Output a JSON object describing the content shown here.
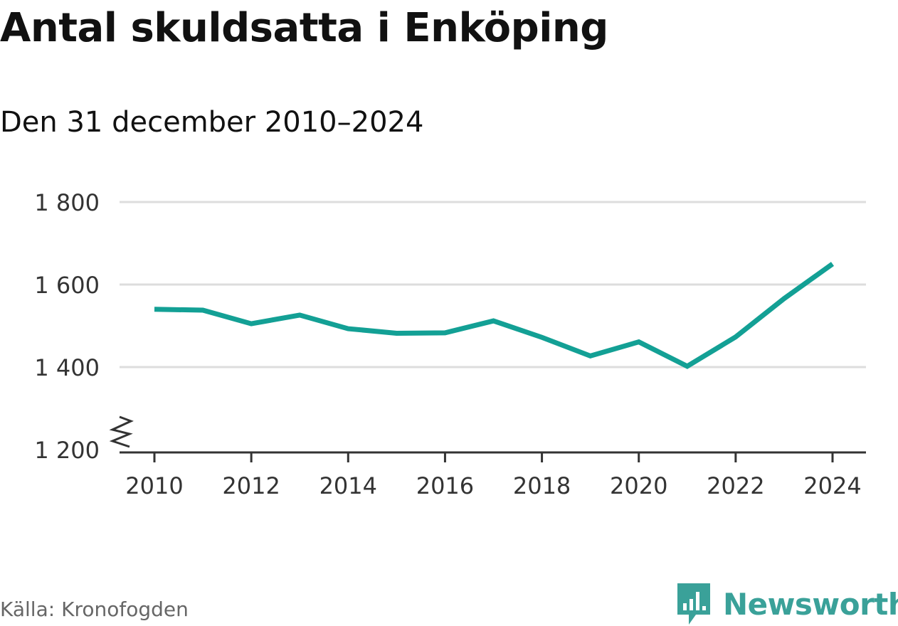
{
  "header": {
    "title": "Antal skuldsatta i Enköping",
    "subtitle": "Den 31 december 2010–2024"
  },
  "footer": {
    "source": "Källa: Kronofogden",
    "brand": "Newsworthy",
    "brand_icon": "newsworthy-chart-bubble-icon"
  },
  "colors": {
    "line": "#13a095",
    "grid": "#dddddd",
    "axis": "#333333",
    "brand": "#3aa199"
  },
  "chart_data": {
    "type": "line",
    "title": "Antal skuldsatta i Enköping",
    "subtitle": "Den 31 december 2010–2024",
    "xlabel": "",
    "ylabel": "",
    "x": [
      2010,
      2011,
      2012,
      2013,
      2014,
      2015,
      2016,
      2017,
      2018,
      2019,
      2020,
      2021,
      2022,
      2023,
      2024
    ],
    "series": [
      {
        "name": "Antal skuldsatta",
        "values": [
          1540,
          1538,
          1505,
          1526,
          1493,
          1482,
          1483,
          1512,
          1472,
          1427,
          1461,
          1402,
          1473,
          1566,
          1650
        ]
      }
    ],
    "xticks": [
      "2010",
      "2012",
      "2014",
      "2016",
      "2018",
      "2020",
      "2022",
      "2024"
    ],
    "xtick_values": [
      2010,
      2012,
      2014,
      2016,
      2018,
      2020,
      2022,
      2024
    ],
    "yticks": [
      "1 200",
      "1 400",
      "1 600",
      "1 800"
    ],
    "ytick_values": [
      1200,
      1400,
      1600,
      1800
    ],
    "ylim": [
      1200,
      1800
    ],
    "xlim": [
      2010,
      2024
    ],
    "grid": true,
    "axis_break": true,
    "legend": "none"
  }
}
